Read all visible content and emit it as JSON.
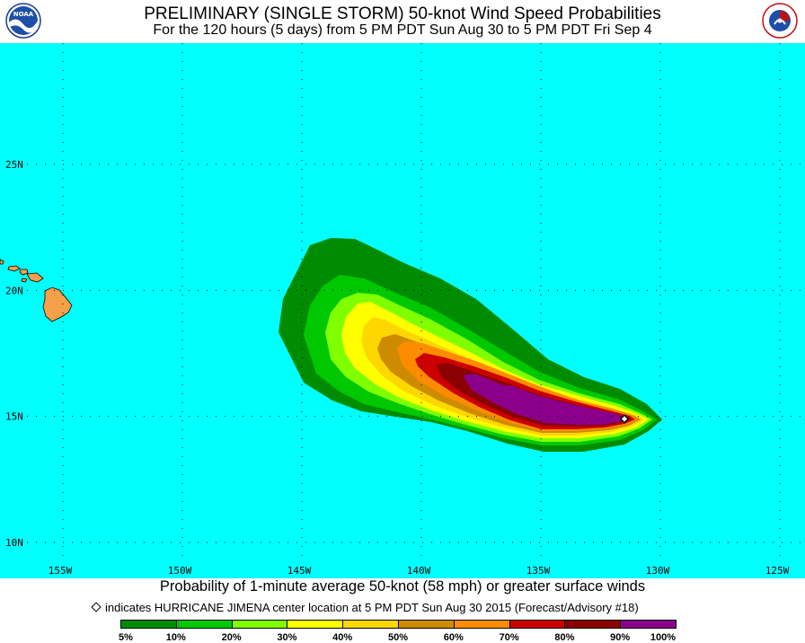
{
  "header": {
    "title": "PRELIMINARY (SINGLE STORM) 50-knot Wind Speed Probabilities",
    "subtitle": "For the 120 hours (5 days) from 5 PM PDT Sun Aug 30 to 5 PM PDT Fri Sep 4",
    "left_logo": "NOAA",
    "right_logo_text": "NATIONAL WEATHER SERVICE"
  },
  "map": {
    "latitudes": [
      {
        "lat": 25,
        "label": "25N"
      },
      {
        "lat": 20,
        "label": "20N"
      },
      {
        "lat": 15,
        "label": "15N"
      },
      {
        "lat": 10,
        "label": "10N"
      }
    ],
    "longitudes": [
      {
        "lon": -155,
        "label": "155W"
      },
      {
        "lon": -150,
        "label": "150W"
      },
      {
        "lon": -145,
        "label": "145W"
      },
      {
        "lon": -140,
        "label": "140W"
      },
      {
        "lon": -135,
        "label": "135W"
      },
      {
        "lon": -130,
        "label": "130W"
      },
      {
        "lon": -125,
        "label": "125W"
      }
    ],
    "ocean_color": "#00ffff",
    "land_color": "#f5a04b",
    "storm_center": {
      "lat": 14.9,
      "lon": -131.5,
      "icon": "diamond-icon"
    }
  },
  "footer": {
    "line1": "Probability of 1-minute average 50-knot (58 mph) or greater surface winds",
    "line2": "indicates HURRICANE JIMENA center location at 5 PM PDT Sun Aug 30 2015 (Forecast/Advisory #18)"
  },
  "legend": {
    "bins": [
      {
        "color": "#008c00"
      },
      {
        "color": "#00c800"
      },
      {
        "color": "#7fff00"
      },
      {
        "color": "#ffff00"
      },
      {
        "color": "#ffd700"
      },
      {
        "color": "#cd8c00"
      },
      {
        "color": "#ff8c00"
      },
      {
        "color": "#cd0000"
      },
      {
        "color": "#8b0000"
      },
      {
        "color": "#8b008b"
      }
    ],
    "labels": [
      "5%",
      "10%",
      "20%",
      "30%",
      "40%",
      "50%",
      "60%",
      "70%",
      "80%",
      "90%",
      "100%"
    ]
  }
}
